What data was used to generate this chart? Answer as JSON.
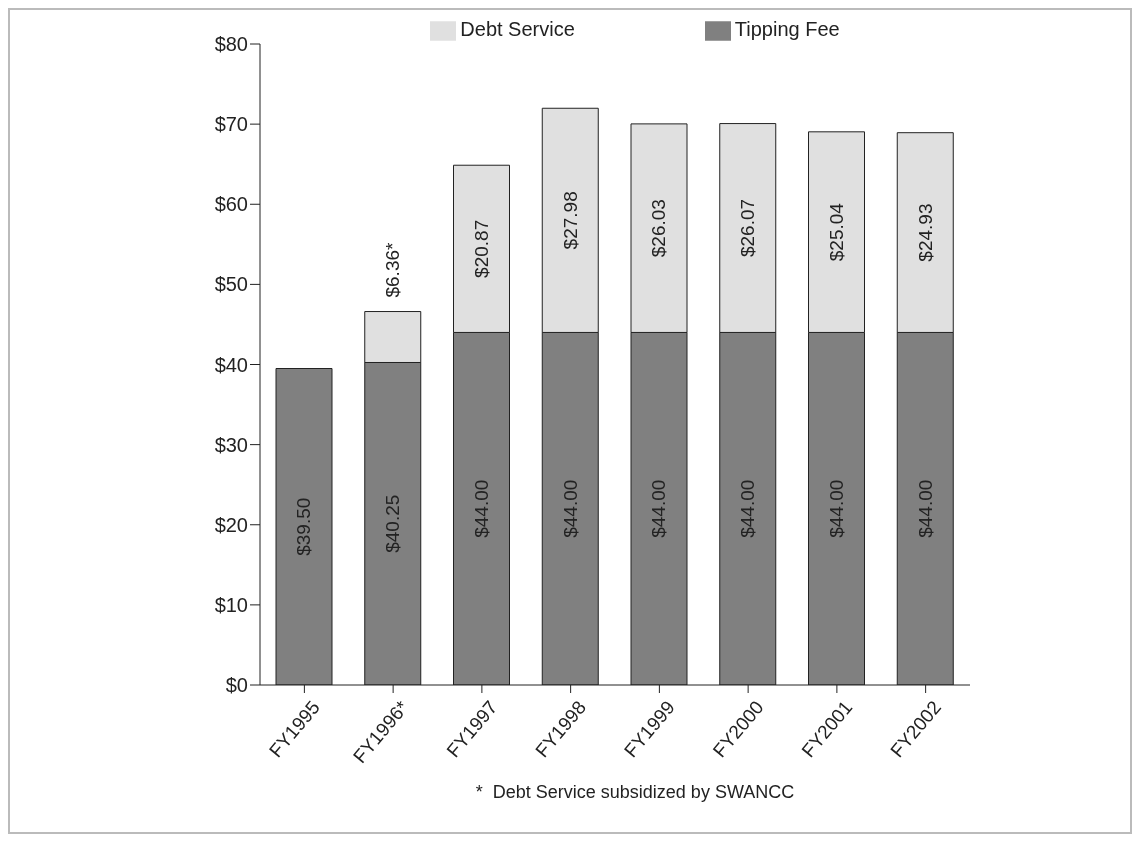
{
  "chart_data": {
    "type": "bar",
    "stacked": true,
    "categories": [
      "FY1995",
      "FY1996*",
      "FY1997",
      "FY1998",
      "FY1999",
      "FY2000",
      "FY2001",
      "FY2002"
    ],
    "series": [
      {
        "name": "Tipping Fee",
        "color": "#808080",
        "values": [
          39.5,
          40.25,
          44,
          44,
          44,
          44,
          44,
          44
        ],
        "value_labels": [
          "$39.50",
          "$40.25",
          "$44.00",
          "$44.00",
          "$44.00",
          "$44.00",
          "$44.00",
          "$44.00"
        ]
      },
      {
        "name": "Debt Service",
        "color": "#e0e0e0",
        "values": [
          null,
          6.36,
          20.87,
          27.98,
          26.03,
          26.07,
          25.04,
          24.93
        ],
        "value_labels": [
          null,
          "$6.36*",
          "$20.87",
          "$27.98",
          "$26.03",
          "$26.07",
          "$25.04",
          "$24.93"
        ]
      }
    ],
    "ylim": [
      0,
      80
    ],
    "yticks": [
      {
        "value": 0,
        "label": "$0"
      },
      {
        "value": 10,
        "label": "$10"
      },
      {
        "value": 20,
        "label": "$20"
      },
      {
        "value": 30,
        "label": "$30"
      },
      {
        "value": 40,
        "label": "$40"
      },
      {
        "value": 50,
        "label": "$50"
      },
      {
        "value": 60,
        "label": "$60"
      },
      {
        "value": 70,
        "label": "$70"
      },
      {
        "value": 80,
        "label": "$80"
      }
    ],
    "grid": false,
    "legend": "top",
    "annotations": [
      "*  Debt Service subsidized by SWANCC"
    ]
  }
}
